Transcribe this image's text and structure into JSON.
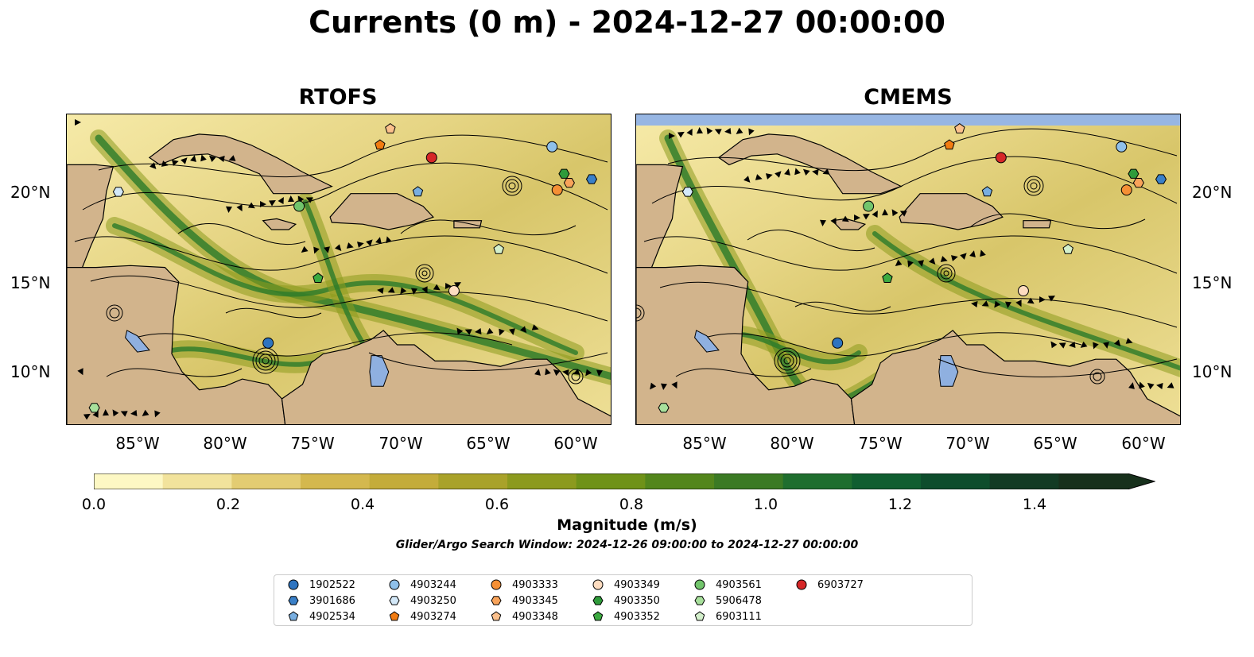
{
  "figure_title": "Currents (0 m) - 2024-12-27 00:00:00",
  "panels": [
    {
      "title": "RTOFS"
    },
    {
      "title": "CMEMS"
    }
  ],
  "lat_ticks": [
    "20°N",
    "15°N",
    "10°N"
  ],
  "lon_ticks": [
    "85°W",
    "80°W",
    "75°W",
    "70°W",
    "65°W",
    "60°W"
  ],
  "colorbar": {
    "label": "Magnitude (m/s)",
    "ticks": [
      "0.0",
      "0.2",
      "0.4",
      "0.6",
      "0.8",
      "1.0",
      "1.2",
      "1.4"
    ],
    "range": [
      0.0,
      1.5
    ],
    "extend": "max",
    "colors": [
      "#fdf8c4",
      "#f2e39c",
      "#e3cc72",
      "#d4b84e",
      "#c4ac3a",
      "#a9a22a",
      "#8c9a1e",
      "#6f9218",
      "#53861c",
      "#3b7a24",
      "#1f6e2e",
      "#105e30",
      "#0e4d2c",
      "#123b24",
      "#17301c"
    ]
  },
  "search_window": "Glider/Argo Search Window: 2024-12-26 09:00:00 to 2024-12-27 00:00:00",
  "colors": {
    "land": "#d2b48c",
    "lake": "#8fb0e0",
    "masked_sea": "#97b6e3"
  },
  "legend": [
    {
      "id": "1902522",
      "marker": "circle",
      "color": "#2e74c0"
    },
    {
      "id": "3901686",
      "marker": "hexagon",
      "color": "#3a80c8"
    },
    {
      "id": "4902534",
      "marker": "pentagon",
      "color": "#78aee0"
    },
    {
      "id": "4903244",
      "marker": "circle",
      "color": "#8fc0ea"
    },
    {
      "id": "4903250",
      "marker": "hexagon",
      "color": "#d3e8f8"
    },
    {
      "id": "4903274",
      "marker": "pentagon",
      "color": "#f27c12"
    },
    {
      "id": "4903333",
      "marker": "circle",
      "color": "#f59035"
    },
    {
      "id": "4903345",
      "marker": "hexagon",
      "color": "#f8a35a"
    },
    {
      "id": "4903348",
      "marker": "pentagon",
      "color": "#fbc08c"
    },
    {
      "id": "4903349",
      "marker": "circle",
      "color": "#fddcc0"
    },
    {
      "id": "4903350",
      "marker": "hexagon",
      "color": "#2f9b3b"
    },
    {
      "id": "4903352",
      "marker": "pentagon",
      "color": "#3caa40"
    },
    {
      "id": "4903561",
      "marker": "circle",
      "color": "#72c56c"
    },
    {
      "id": "5906478",
      "marker": "hexagon",
      "color": "#a8e09c"
    },
    {
      "id": "6903111",
      "marker": "pentagon",
      "color": "#d4f0cc"
    },
    {
      "id": "6903727",
      "marker": "circle",
      "color": "#d62728"
    }
  ],
  "floats": [
    {
      "id": "1902522",
      "lon": -78.0,
      "lat": 11.6
    },
    {
      "id": "3901686",
      "lon": -59.2,
      "lat": 20.7
    },
    {
      "id": "4902534",
      "lon": -69.3,
      "lat": 20.0
    },
    {
      "id": "4903244",
      "lon": -61.5,
      "lat": 22.5
    },
    {
      "id": "4903250",
      "lon": -86.7,
      "lat": 20.0
    },
    {
      "id": "4903274",
      "lon": -71.5,
      "lat": 22.6
    },
    {
      "id": "4903333",
      "lon": -61.2,
      "lat": 20.1
    },
    {
      "id": "4903345",
      "lon": -60.5,
      "lat": 20.5
    },
    {
      "id": "4903348",
      "lon": -70.9,
      "lat": 23.5
    },
    {
      "id": "4903349",
      "lon": -67.2,
      "lat": 14.5
    },
    {
      "id": "4903350",
      "lon": -60.8,
      "lat": 21.0
    },
    {
      "id": "4903352",
      "lon": -75.1,
      "lat": 15.2
    },
    {
      "id": "4903561",
      "lon": -76.2,
      "lat": 19.2
    },
    {
      "id": "5906478",
      "lon": -88.1,
      "lat": 8.0
    },
    {
      "id": "6903111",
      "lon": -64.6,
      "lat": 16.8
    },
    {
      "id": "6903727",
      "lon": -68.5,
      "lat": 21.9
    }
  ]
}
